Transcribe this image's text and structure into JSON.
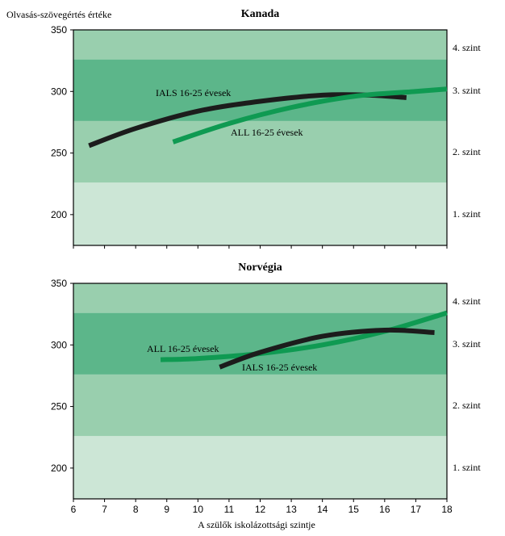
{
  "ylabel": "Olvasás-szövegértés értéke",
  "xlabel": "A szülők iskolázottsági szintje",
  "colors": {
    "band_light": "#cce6d6",
    "band_mid": "#99cfae",
    "band_dark": "#5cb68a",
    "all_line": "#0f9a52",
    "ials_line": "#1c1c1c"
  },
  "chart_data": [
    {
      "type": "line",
      "title": "Kanada",
      "xlim": [
        6,
        18
      ],
      "ylim": [
        175,
        350
      ],
      "yticks": [
        200,
        250,
        300,
        350
      ],
      "bands": [
        {
          "label": "1. szint",
          "from": 175,
          "to": 226
        },
        {
          "label": "2. szint",
          "from": 226,
          "to": 276
        },
        {
          "label": "3. szint",
          "from": 276,
          "to": 326
        },
        {
          "label": "4. szint",
          "from": 326,
          "to": 350
        }
      ],
      "series": [
        {
          "name": "IALS 16-25 évesek",
          "x": [
            6.5,
            8,
            10,
            12,
            14,
            15.5,
            16.7
          ],
          "y": [
            256,
            270,
            284,
            292,
            297,
            297,
            295
          ]
        },
        {
          "name": "ALL 16-25 évesek",
          "x": [
            9.2,
            11,
            13,
            15,
            17,
            18
          ],
          "y": [
            259,
            274,
            287,
            296,
            300,
            302
          ]
        }
      ]
    },
    {
      "type": "line",
      "title": "Norvégia",
      "xlim": [
        6,
        18
      ],
      "ylim": [
        175,
        350
      ],
      "yticks": [
        200,
        250,
        300,
        350
      ],
      "bands": [
        {
          "label": "1. szint",
          "from": 175,
          "to": 226
        },
        {
          "label": "2. szint",
          "from": 226,
          "to": 276
        },
        {
          "label": "3. szint",
          "from": 276,
          "to": 326
        },
        {
          "label": "4. szint",
          "from": 326,
          "to": 350
        }
      ],
      "series": [
        {
          "name": "ALL 16-25 évesek",
          "x": [
            8.8,
            10,
            12,
            14,
            16,
            18
          ],
          "y": [
            288,
            289,
            293,
            300,
            311,
            326
          ]
        },
        {
          "name": "IALS 16-25 évesek",
          "x": [
            10.7,
            12,
            14,
            16,
            17.6
          ],
          "y": [
            282,
            294,
            307,
            312,
            310
          ]
        }
      ]
    }
  ]
}
